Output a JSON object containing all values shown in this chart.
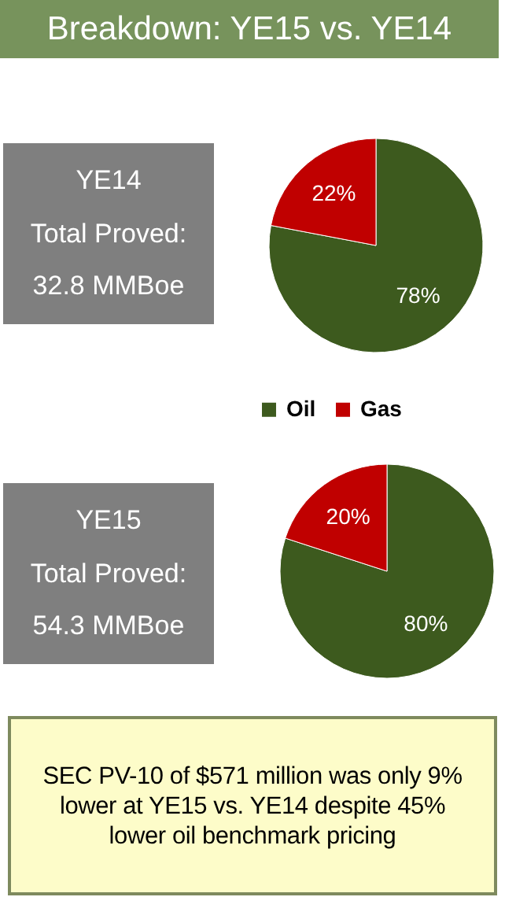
{
  "chart_data": [
    {
      "type": "pie",
      "title": "Breakdown: YE15 vs. YE14",
      "categories": [
        "Oil",
        "Gas"
      ],
      "values": [
        78,
        22
      ],
      "colors": [
        "#3d5a1e",
        "#c00000"
      ],
      "value_labels": [
        "78%",
        "22%"
      ],
      "legend": "bottom",
      "annotations": [
        "YE14",
        "Total Proved:",
        "32.8 MMBoe"
      ]
    },
    {
      "type": "pie",
      "categories": [
        null,
        null
      ],
      "values": [
        80,
        20
      ],
      "colors": [
        "#3d5a1e",
        "#c00000"
      ],
      "value_labels": [
        "80%",
        "20%"
      ],
      "annotations": [
        "YE15",
        "Total Proved:",
        "54.3 MMBoe",
        "SEC PV-10 of $571 million was only 9% lower at YE15 vs. YE14 despite 45% lower oil benchmark pricing"
      ]
    }
  ]
}
